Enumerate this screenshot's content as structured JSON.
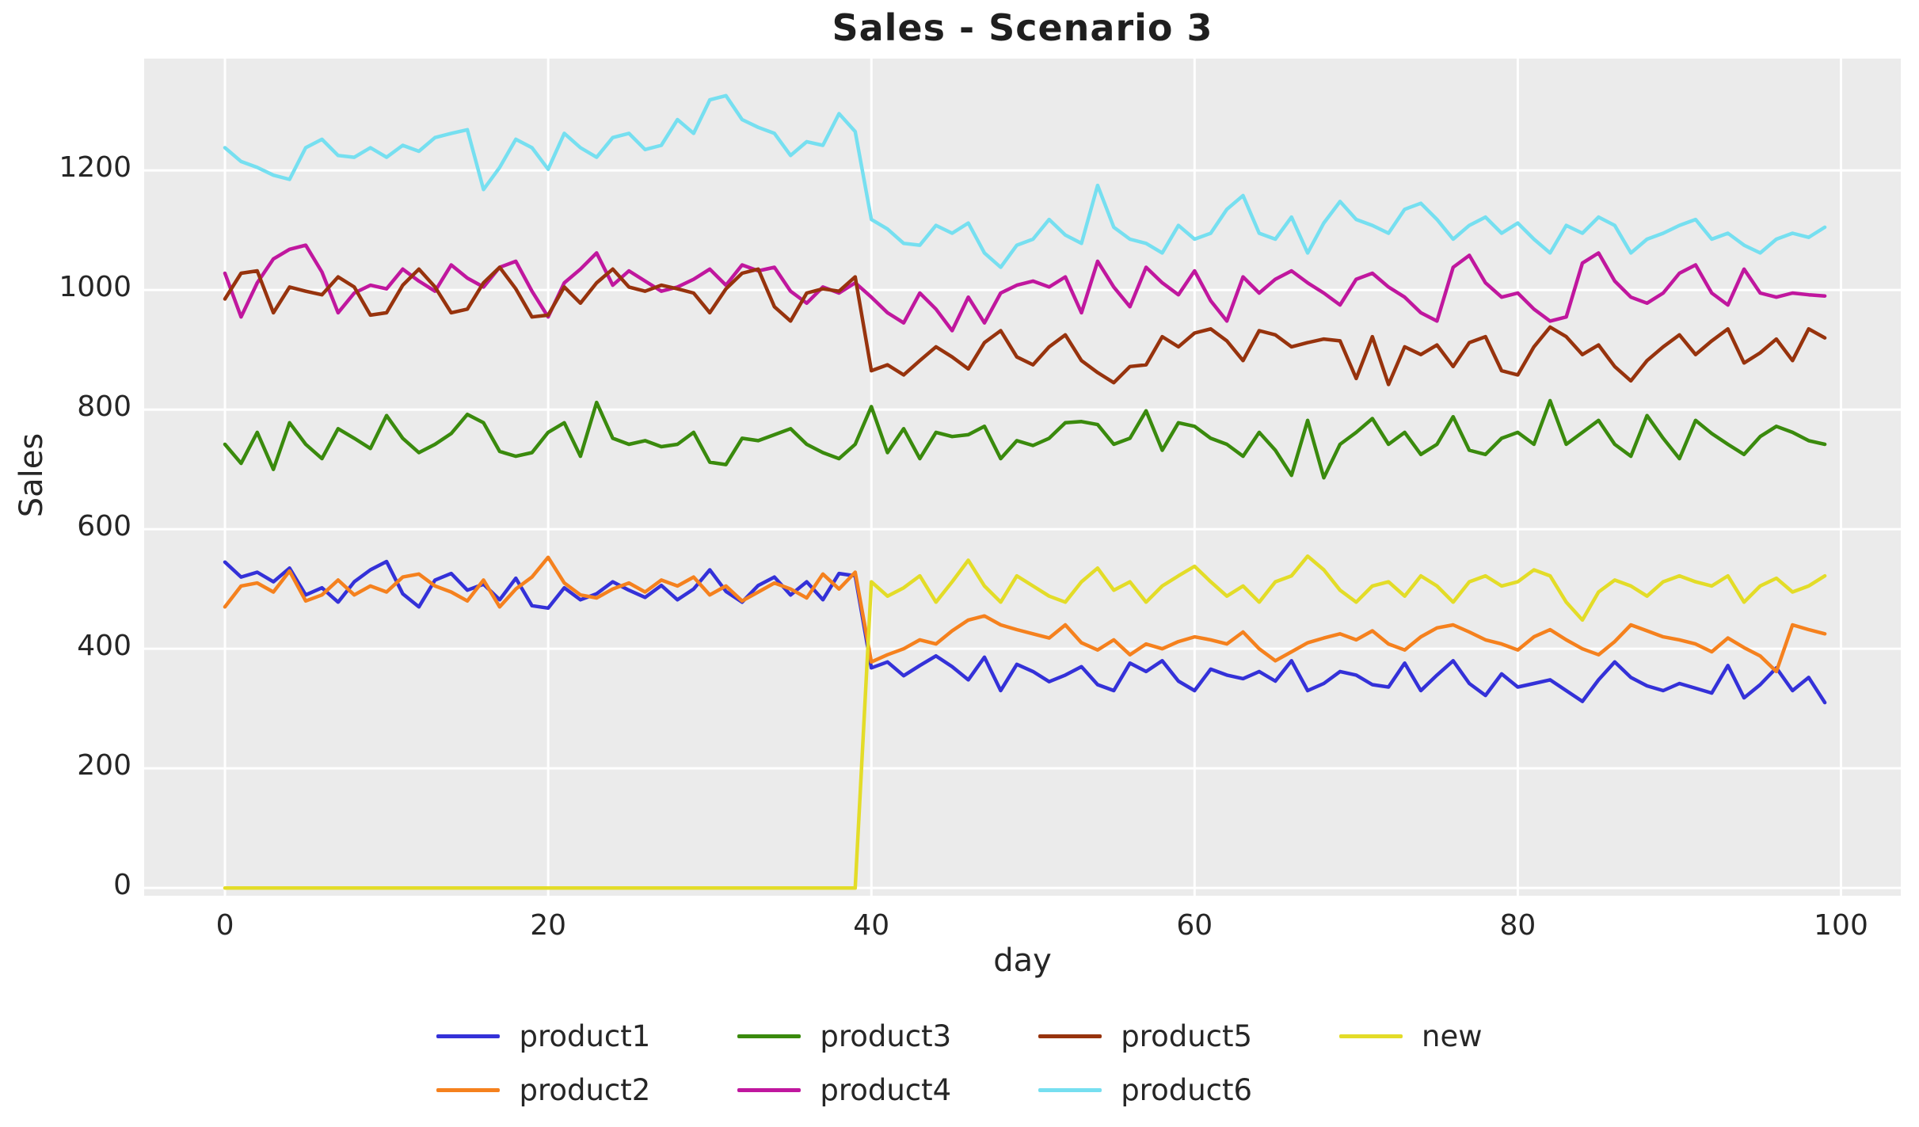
{
  "chart_data": {
    "type": "line",
    "title": "Sales - Scenario 3",
    "xlabel": "day",
    "ylabel": "Sales",
    "x_start": 0,
    "x_step": 1,
    "num_points": 100,
    "xticks": [
      0,
      20,
      40,
      60,
      80,
      100
    ],
    "yticks": [
      0,
      200,
      400,
      600,
      800,
      1000,
      1200
    ],
    "xlim": [
      -5,
      103.7
    ],
    "ylim": [
      -13,
      1387
    ],
    "grid": true,
    "plot_background": "#EBEBEB",
    "gridline_color": "#FFFFFF",
    "legend_position": "below",
    "legend_columns": 4,
    "notes": "All products shift level at day 40; series 'new' is 0 before day 40",
    "series": [
      {
        "name": "product1",
        "color": "#3431D8",
        "values": [
          545,
          520,
          528,
          512,
          535,
          490,
          502,
          478,
          512,
          532,
          546,
          492,
          470,
          515,
          526,
          498,
          508,
          482,
          518,
          472,
          468,
          502,
          482,
          492,
          512,
          498,
          486,
          506,
          482,
          500,
          532,
          496,
          478,
          506,
          520,
          490,
          512,
          482,
          526,
          522,
          368,
          378,
          355,
          372,
          388,
          370,
          348,
          386,
          330,
          374,
          362,
          345,
          356,
          370,
          340,
          330,
          376,
          362,
          380,
          346,
          330,
          366,
          356,
          350,
          362,
          346,
          380,
          330,
          342,
          362,
          356,
          340,
          336,
          376,
          330,
          356,
          380,
          342,
          322,
          358,
          336,
          342,
          348,
          330,
          312,
          348,
          378,
          352,
          338,
          330,
          342,
          334,
          326,
          372,
          318,
          340,
          368,
          330,
          352,
          310
        ]
      },
      {
        "name": "product2",
        "color": "#F5811E",
        "values": [
          470,
          505,
          510,
          495,
          530,
          480,
          490,
          515,
          490,
          505,
          495,
          520,
          525,
          505,
          495,
          480,
          515,
          470,
          500,
          520,
          553,
          510,
          490,
          485,
          500,
          510,
          495,
          515,
          505,
          520,
          490,
          505,
          480,
          495,
          510,
          500,
          485,
          525,
          500,
          528,
          378,
          390,
          400,
          415,
          408,
          430,
          448,
          455,
          440,
          432,
          425,
          418,
          440,
          410,
          398,
          415,
          390,
          408,
          400,
          412,
          420,
          415,
          408,
          428,
          400,
          380,
          395,
          410,
          418,
          425,
          415,
          430,
          408,
          398,
          420,
          435,
          440,
          428,
          415,
          408,
          398,
          420,
          432,
          415,
          400,
          390,
          412,
          440,
          430,
          420,
          415,
          408,
          395,
          418,
          402,
          388,
          362,
          440,
          432,
          425
        ]
      },
      {
        "name": "product3",
        "color": "#3A8A0D",
        "values": [
          742,
          710,
          762,
          700,
          778,
          742,
          718,
          768,
          752,
          735,
          790,
          752,
          728,
          742,
          760,
          792,
          778,
          730,
          722,
          728,
          762,
          778,
          722,
          812,
          752,
          742,
          748,
          738,
          742,
          762,
          712,
          708,
          752,
          748,
          758,
          768,
          742,
          728,
          718,
          742,
          805,
          728,
          768,
          718,
          762,
          755,
          758,
          772,
          718,
          748,
          740,
          752,
          778,
          780,
          775,
          742,
          752,
          798,
          732,
          778,
          772,
          752,
          742,
          722,
          762,
          732,
          690,
          782,
          686,
          742,
          762,
          785,
          742,
          762,
          725,
          742,
          788,
          732,
          725,
          752,
          762,
          742,
          815,
          742,
          762,
          782,
          742,
          722,
          790,
          752,
          718,
          782,
          760,
          742,
          725,
          755,
          772,
          762,
          748,
          742
        ]
      },
      {
        "name": "product4",
        "color": "#C0179E",
        "values": [
          1028,
          955,
          1012,
          1052,
          1068,
          1075,
          1030,
          962,
          995,
          1008,
          1002,
          1035,
          1015,
          998,
          1042,
          1020,
          1005,
          1038,
          1048,
          998,
          955,
          1012,
          1035,
          1062,
          1008,
          1032,
          1015,
          998,
          1005,
          1018,
          1035,
          1008,
          1042,
          1032,
          1038,
          998,
          978,
          1005,
          995,
          1012,
          988,
          962,
          945,
          995,
          968,
          932,
          988,
          945,
          995,
          1008,
          1015,
          1005,
          1022,
          962,
          1048,
          1005,
          972,
          1038,
          1012,
          992,
          1032,
          982,
          948,
          1022,
          995,
          1018,
          1032,
          1012,
          995,
          975,
          1018,
          1028,
          1005,
          988,
          962,
          948,
          1038,
          1058,
          1012,
          988,
          995,
          968,
          948,
          955,
          1045,
          1062,
          1015,
          988,
          978,
          995,
          1028,
          1042,
          995,
          975,
          1035,
          995,
          988,
          995,
          992,
          990
        ]
      },
      {
        "name": "product5",
        "color": "#97330D",
        "values": [
          985,
          1028,
          1032,
          962,
          1005,
          998,
          992,
          1022,
          1005,
          958,
          962,
          1008,
          1035,
          1005,
          962,
          968,
          1012,
          1038,
          1002,
          955,
          958,
          1005,
          978,
          1012,
          1035,
          1005,
          998,
          1008,
          1002,
          995,
          962,
          1002,
          1028,
          1035,
          972,
          948,
          995,
          1002,
          998,
          1022,
          865,
          875,
          858,
          882,
          905,
          888,
          868,
          912,
          932,
          888,
          875,
          905,
          925,
          882,
          862,
          845,
          872,
          875,
          922,
          905,
          928,
          935,
          915,
          882,
          932,
          925,
          905,
          912,
          918,
          915,
          852,
          922,
          842,
          905,
          892,
          908,
          872,
          912,
          922,
          865,
          858,
          905,
          938,
          922,
          892,
          908,
          872,
          848,
          882,
          905,
          925,
          892,
          915,
          935,
          878,
          895,
          918,
          882,
          935,
          920
        ]
      },
      {
        "name": "product6",
        "color": "#76DFF0",
        "values": [
          1238,
          1215,
          1205,
          1192,
          1185,
          1238,
          1252,
          1225,
          1222,
          1238,
          1222,
          1242,
          1232,
          1255,
          1262,
          1268,
          1168,
          1205,
          1252,
          1238,
          1202,
          1262,
          1238,
          1222,
          1255,
          1262,
          1235,
          1242,
          1285,
          1262,
          1318,
          1325,
          1285,
          1272,
          1262,
          1225,
          1248,
          1242,
          1295,
          1265,
          1118,
          1102,
          1078,
          1075,
          1108,
          1095,
          1112,
          1062,
          1038,
          1075,
          1085,
          1118,
          1092,
          1078,
          1175,
          1105,
          1085,
          1078,
          1062,
          1108,
          1085,
          1095,
          1135,
          1158,
          1095,
          1085,
          1122,
          1062,
          1112,
          1148,
          1118,
          1108,
          1095,
          1135,
          1145,
          1118,
          1085,
          1108,
          1122,
          1095,
          1112,
          1085,
          1062,
          1108,
          1095,
          1122,
          1108,
          1062,
          1085,
          1095,
          1108,
          1118,
          1085,
          1095,
          1075,
          1062,
          1085,
          1095,
          1088,
          1105
        ]
      },
      {
        "name": "new",
        "color": "#E3DC28",
        "values": [
          0,
          0,
          0,
          0,
          0,
          0,
          0,
          0,
          0,
          0,
          0,
          0,
          0,
          0,
          0,
          0,
          0,
          0,
          0,
          0,
          0,
          0,
          0,
          0,
          0,
          0,
          0,
          0,
          0,
          0,
          0,
          0,
          0,
          0,
          0,
          0,
          0,
          0,
          0,
          0,
          512,
          488,
          502,
          522,
          478,
          512,
          548,
          505,
          478,
          522,
          505,
          488,
          478,
          512,
          535,
          498,
          512,
          478,
          505,
          522,
          538,
          512,
          488,
          505,
          478,
          512,
          522,
          555,
          532,
          498,
          478,
          505,
          512,
          488,
          522,
          505,
          478,
          512,
          522,
          505,
          512,
          532,
          522,
          478,
          448,
          495,
          515,
          505,
          488,
          512,
          522,
          512,
          505,
          522,
          478,
          505,
          518,
          495,
          505,
          522
        ]
      }
    ]
  }
}
